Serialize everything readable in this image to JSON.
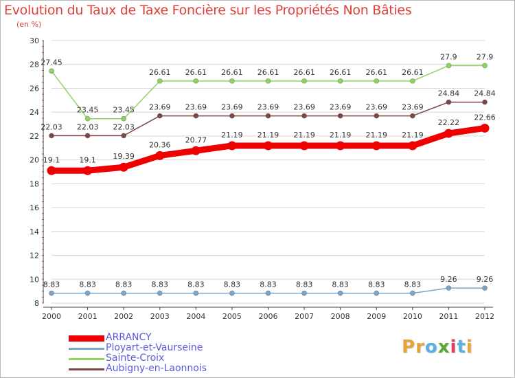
{
  "chart_data": {
    "type": "line",
    "title": "Evolution du Taux de Taxe Foncière sur les Propriétés Non Bâties",
    "subtitle": "(en %)",
    "xlabel": "",
    "ylabel": "(en %)",
    "x": [
      "2000",
      "2001",
      "2002",
      "2003",
      "2004",
      "2005",
      "2006",
      "2007",
      "2008",
      "2009",
      "2010",
      "2011",
      "2012"
    ],
    "yticks": [
      "8",
      "10",
      "12",
      "14",
      "16",
      "18",
      "20",
      "22",
      "24",
      "26",
      "28",
      "30"
    ],
    "ylim": [
      8,
      30
    ],
    "grid": "horizontal",
    "series": [
      {
        "name": "ARRANCY",
        "color": "#ee0000",
        "values": [
          19.1,
          19.1,
          19.39,
          20.36,
          20.77,
          21.19,
          21.19,
          21.19,
          21.19,
          21.19,
          21.19,
          22.22,
          22.66
        ],
        "labels": [
          "19.1",
          "19.1",
          "19.39",
          "20.36",
          "20.77",
          "21.19",
          "21.19",
          "21.19",
          "21.19",
          "21.19",
          "21.19",
          "22.22",
          "22.66"
        ]
      },
      {
        "name": "Ployart-et-Vaurseine",
        "color": "#7ba5c9",
        "values": [
          8.83,
          8.83,
          8.83,
          8.83,
          8.83,
          8.83,
          8.83,
          8.83,
          8.83,
          8.83,
          8.83,
          9.26,
          9.26
        ],
        "labels": [
          "8.83",
          "8.83",
          "8.83",
          "8.83",
          "8.83",
          "8.83",
          "8.83",
          "8.83",
          "8.83",
          "8.83",
          "8.83",
          "9.26",
          "9.26"
        ]
      },
      {
        "name": "Sainte-Croix",
        "color": "#8fd461",
        "values": [
          27.45,
          23.45,
          23.45,
          26.61,
          26.61,
          26.61,
          26.61,
          26.61,
          26.61,
          26.61,
          26.61,
          27.9,
          27.9
        ],
        "labels": [
          "27.45",
          "23.45",
          "23.45",
          "26.61",
          "26.61",
          "26.61",
          "26.61",
          "26.61",
          "26.61",
          "26.61",
          "26.61",
          "27.9",
          "27.9"
        ]
      },
      {
        "name": "Aubigny-en-Laonnois",
        "color": "#7d4646",
        "values": [
          22.03,
          22.03,
          22.03,
          23.69,
          23.69,
          23.69,
          23.69,
          23.69,
          23.69,
          23.69,
          23.69,
          24.84,
          24.84
        ],
        "labels": [
          "22.03",
          "22.03",
          "22.03",
          "23.69",
          "23.69",
          "23.69",
          "23.69",
          "23.69",
          "23.69",
          "23.69",
          "23.69",
          "24.84",
          "24.84"
        ]
      }
    ]
  },
  "legend": {
    "items": [
      {
        "label": "ARRANCY",
        "color": "#ee0000"
      },
      {
        "label": "Ployart-et-Vaurseine",
        "color": "#7ba5c9"
      },
      {
        "label": "Sainte-Croix",
        "color": "#8fd461"
      },
      {
        "label": "Aubigny-en-Laonnois",
        "color": "#7d4646"
      }
    ],
    "text_color": "#5a5ae0"
  },
  "logo": {
    "letters": [
      "P",
      "r",
      "o",
      "x",
      "i",
      "t",
      "i"
    ],
    "colors": [
      "#e8a23a",
      "#e8a23a",
      "#5bb0e0",
      "#5aa83a",
      "#e04060",
      "#5bb0e0",
      "#e8a23a"
    ]
  }
}
